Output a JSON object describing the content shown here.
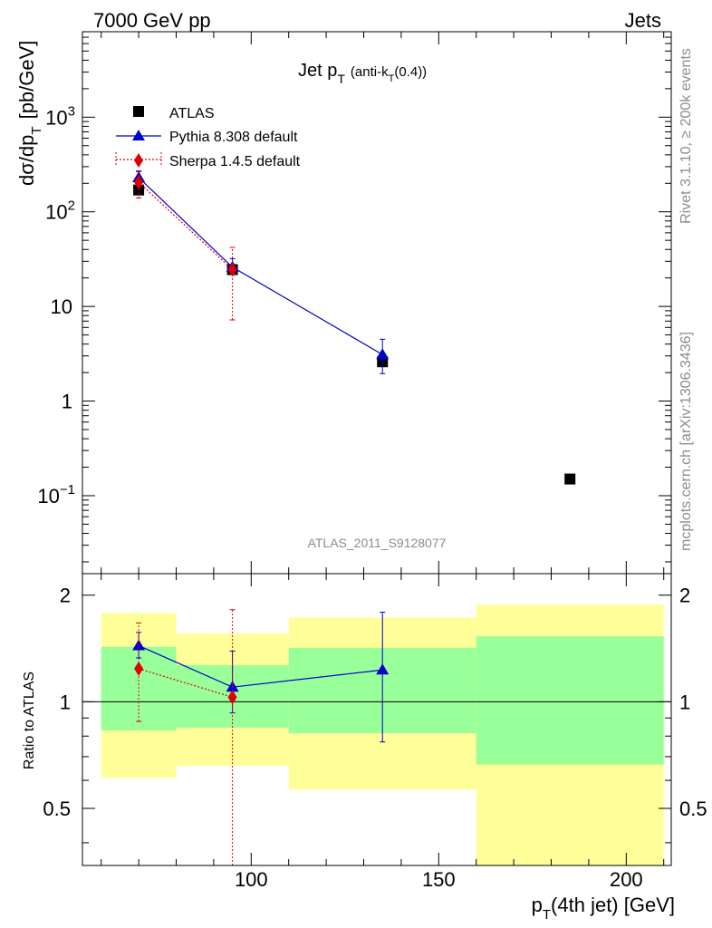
{
  "header": {
    "energy_label": "7000 GeV pp",
    "process_label": "Jets",
    "side_label_top": "Rivet 3.1.10, ≥ 200k events",
    "side_label_bottom": "mcplots.cern.ch [arXiv:1306.3436]",
    "analysis_id": "ATLAS_2011_S9128077"
  },
  "legend": {
    "atlas": "ATLAS",
    "pythia": "Pythia 8.308 default",
    "sherpa": "Sherpa 1.4.5 default"
  },
  "colors": {
    "atlas": "#000000",
    "pythia": "#0000cc",
    "sherpa": "#e00000",
    "band_inner": "#99ff99",
    "band_outer": "#ffff99"
  },
  "chart_data": [
    {
      "type": "scatter",
      "title": "Jet pT (anti-kT(0.4))",
      "title_main": "Jet p",
      "title_sub": "T",
      "title_rest": "(anti-k",
      "title_sub2": "T",
      "title_end": "(0.4))",
      "ylabel_main": "dσ/dp",
      "ylabel_sub": "T",
      "ylabel_unit": "[pb/GeV]",
      "yscale": "log",
      "xlim": [
        55,
        212
      ],
      "ylim": [
        0.015,
        8000
      ],
      "y_ticks": [
        {
          "value": 0.1,
          "base": "10",
          "exp": "−1"
        },
        {
          "value": 1,
          "label": "1"
        },
        {
          "value": 10,
          "label": "10"
        },
        {
          "value": 100,
          "base": "10",
          "exp": "2"
        },
        {
          "value": 1000,
          "base": "10",
          "exp": "3"
        }
      ],
      "series": [
        {
          "name": "ATLAS",
          "marker": "square",
          "x": [
            70,
            95,
            135,
            185
          ],
          "y": [
            170,
            24.5,
            2.6,
            0.15
          ]
        },
        {
          "name": "Pythia 8.308 default",
          "marker": "triangle",
          "line": "solid",
          "x": [
            70,
            95,
            135
          ],
          "y": [
            230,
            26,
            3.1
          ],
          "err_low": [
            185,
            22.5,
            1.95
          ],
          "err_high": [
            270,
            32,
            4.5
          ]
        },
        {
          "name": "Sherpa 1.4.5 default",
          "marker": "diamond",
          "line": "dotted",
          "x": [
            70,
            95
          ],
          "y": [
            205,
            24.5
          ],
          "err_low": [
            140,
            7.2
          ],
          "err_high": [
            265,
            42
          ]
        }
      ]
    },
    {
      "type": "scatter",
      "ylabel": "Ratio to ATLAS",
      "xlabel_main": "p",
      "xlabel_sub": "T",
      "xlabel_rest": "(4th jet) [GeV]",
      "yscale": "log",
      "xlim": [
        55,
        212
      ],
      "ylim": [
        0.345,
        2.3
      ],
      "y_ticks": [
        0.5,
        1,
        2
      ],
      "x_ticks": [
        100,
        150,
        200
      ],
      "reference": 1,
      "bands": [
        {
          "x0": 60,
          "x1": 80,
          "inner": [
            0.83,
            1.43
          ],
          "outer": [
            0.61,
            1.78
          ]
        },
        {
          "x0": 80,
          "x1": 110,
          "inner": [
            0.845,
            1.27
          ],
          "outer": [
            0.66,
            1.56
          ]
        },
        {
          "x0": 110,
          "x1": 160,
          "inner": [
            0.815,
            1.42
          ],
          "outer": [
            0.565,
            1.73
          ]
        },
        {
          "x0": 160,
          "x1": 210,
          "inner": [
            0.665,
            1.53
          ],
          "outer": [
            0.345,
            1.88
          ]
        }
      ],
      "series": [
        {
          "name": "Pythia 8.308 default",
          "marker": "triangle",
          "line": "solid",
          "x": [
            70,
            95,
            135
          ],
          "y": [
            1.44,
            1.1,
            1.23
          ],
          "err_low": [
            1.33,
            0.93,
            0.77
          ],
          "err_high": [
            1.57,
            1.39,
            1.79
          ]
        },
        {
          "name": "Sherpa 1.4.5 default",
          "marker": "diamond",
          "line": "dotted",
          "x": [
            70,
            95
          ],
          "y": [
            1.24,
            1.03
          ],
          "err_low": [
            0.88,
            0.345
          ],
          "err_high": [
            1.67,
            1.82
          ]
        }
      ]
    }
  ]
}
